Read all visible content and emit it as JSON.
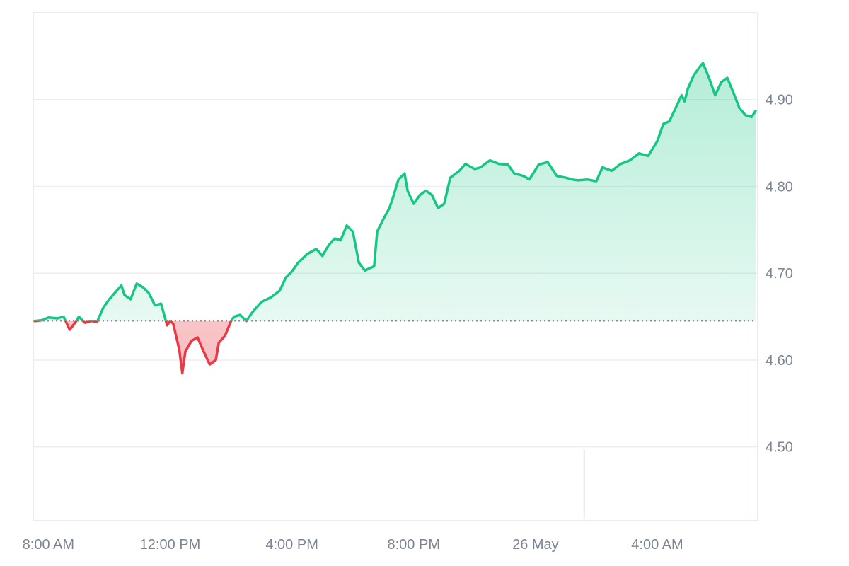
{
  "chart_data": {
    "type": "area",
    "baseline": 4.645,
    "y_ticks": [
      "4.90",
      "4.80",
      "4.70",
      "4.60",
      "4.50"
    ],
    "x_ticks": [
      "8:00 AM",
      "12:00 PM",
      "4:00 PM",
      "8:00 PM",
      "26 May",
      "4:00 AM"
    ],
    "x_tick_hours": [
      8,
      12,
      16,
      20,
      24,
      28
    ],
    "ylim": [
      4.415,
      5.0
    ],
    "xlim": [
      7.55,
      31.23
    ],
    "day_marker_hour": 25.6,
    "colors": {
      "up": "#16c784",
      "down": "#ea3943",
      "grid": "#eceef1",
      "axis_text": "#7c8493",
      "baseline": "#8a8f98"
    },
    "series": [
      {
        "x": [
          7.55,
          7.8,
          8.0,
          8.3,
          8.5,
          8.7,
          8.9,
          9.0,
          9.2,
          9.4,
          9.6,
          9.8,
          10.0,
          10.2,
          10.4,
          10.5,
          10.7,
          10.9,
          11.1,
          11.3,
          11.5,
          11.7,
          11.9,
          12.0,
          12.1,
          12.3,
          12.4,
          12.5,
          12.7,
          12.9,
          13.1,
          13.3,
          13.5,
          13.6,
          13.8,
          14.0,
          14.1,
          14.3,
          14.5,
          14.7,
          15.0,
          15.3,
          15.6,
          15.8,
          16.0,
          16.2,
          16.5,
          16.8,
          17.0,
          17.2,
          17.4,
          17.6,
          17.8,
          18.0,
          18.2,
          18.4,
          18.5,
          18.7,
          18.8,
          19.0,
          19.2,
          19.3,
          19.5,
          19.7,
          19.8,
          20.0,
          20.2,
          20.4,
          20.6,
          20.8,
          21.0,
          21.2,
          21.5,
          21.7,
          22.0,
          22.2,
          22.5,
          22.8,
          23.1,
          23.3,
          23.6,
          23.8,
          24.1,
          24.4,
          24.7,
          25.0,
          25.2,
          25.4,
          25.7,
          26.0,
          26.2,
          26.5,
          26.8,
          27.1,
          27.4,
          27.7,
          28.0,
          28.2,
          28.4,
          28.6,
          28.8,
          28.9,
          29.0,
          29.2,
          29.4,
          29.5,
          29.7,
          29.9,
          30.1,
          30.3,
          30.5,
          30.7,
          30.9,
          31.1,
          31.23
        ],
        "y": [
          4.645,
          4.646,
          4.649,
          4.648,
          4.65,
          4.635,
          4.644,
          4.65,
          4.643,
          4.645,
          4.644,
          4.66,
          4.67,
          4.678,
          4.686,
          4.675,
          4.67,
          4.688,
          4.684,
          4.677,
          4.663,
          4.665,
          4.64,
          4.645,
          4.642,
          4.612,
          4.585,
          4.61,
          4.622,
          4.626,
          4.61,
          4.595,
          4.6,
          4.62,
          4.628,
          4.645,
          4.65,
          4.652,
          4.645,
          4.655,
          4.667,
          4.672,
          4.68,
          4.695,
          4.702,
          4.712,
          4.722,
          4.728,
          4.72,
          4.732,
          4.74,
          4.738,
          4.755,
          4.748,
          4.712,
          4.703,
          4.705,
          4.708,
          4.748,
          4.762,
          4.775,
          4.785,
          4.808,
          4.815,
          4.795,
          4.78,
          4.79,
          4.795,
          4.79,
          4.775,
          4.78,
          4.81,
          4.818,
          4.826,
          4.82,
          4.822,
          4.83,
          4.826,
          4.825,
          4.815,
          4.812,
          4.808,
          4.825,
          4.828,
          4.812,
          4.81,
          4.808,
          4.807,
          4.808,
          4.806,
          4.822,
          4.818,
          4.826,
          4.83,
          4.838,
          4.835,
          4.852,
          4.872,
          4.875,
          4.89,
          4.905,
          4.898,
          4.912,
          4.928,
          4.938,
          4.942,
          4.925,
          4.905,
          4.92,
          4.925,
          4.908,
          4.89,
          4.882,
          4.88,
          4.887
        ]
      }
    ]
  }
}
